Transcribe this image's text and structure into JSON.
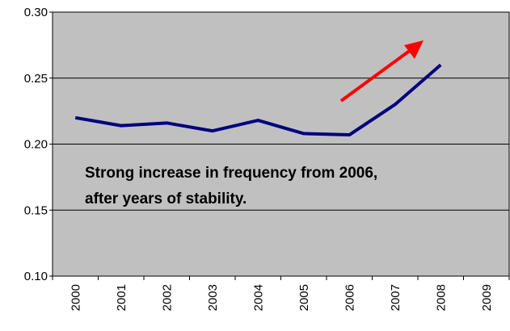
{
  "chart_data": {
    "type": "line",
    "categories": [
      "2000",
      "2001",
      "2002",
      "2003",
      "2004",
      "2005",
      "2006",
      "2007",
      "2008",
      "2009"
    ],
    "series": [
      {
        "color": "#000080",
        "values": [
          0.22,
          0.214,
          0.216,
          0.21,
          0.218,
          0.208,
          0.207,
          0.23,
          0.26,
          null
        ]
      }
    ],
    "ylim": [
      0.1,
      0.3
    ],
    "yticks": [
      {
        "value": 0.1,
        "label": "0.10"
      },
      {
        "value": 0.15,
        "label": "0.15"
      },
      {
        "value": 0.2,
        "label": "0.20"
      },
      {
        "value": 0.25,
        "label": "0.25"
      },
      {
        "value": 0.3,
        "label": "0.30"
      }
    ],
    "grid": true,
    "annotations": [
      "Strong increase in frequency from 2006,",
      "after years of stability."
    ]
  }
}
